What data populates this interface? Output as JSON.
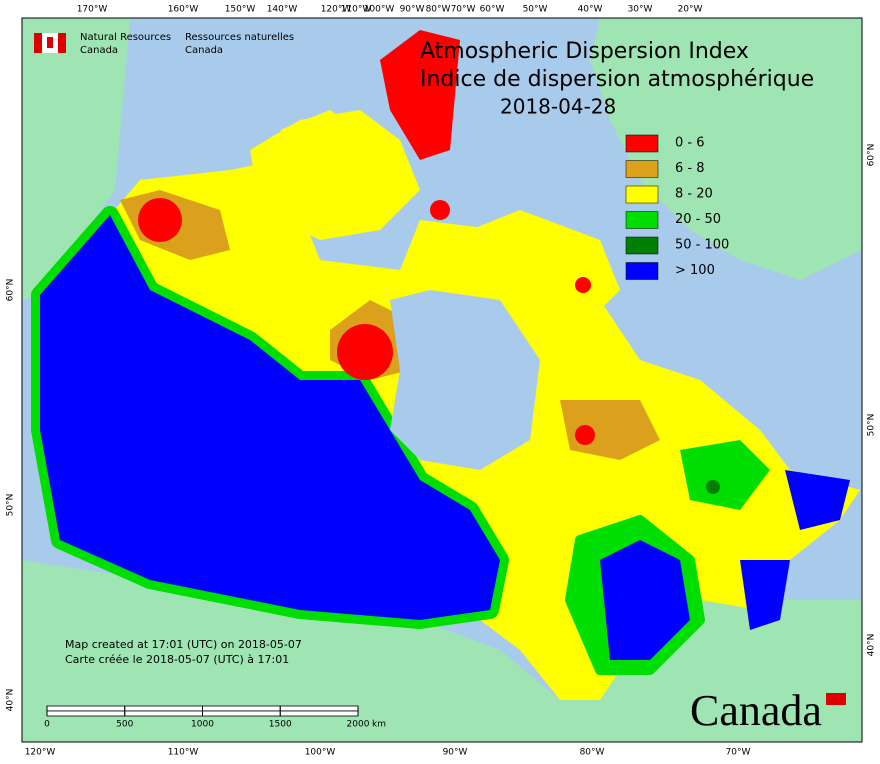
{
  "map": {
    "title": "Atmospheric Dispersion Index",
    "title_fr": "Indice de dispersion atmosphérique",
    "date": "2018-04-28",
    "logo": {
      "en": [
        "Natural Resources",
        "Canada"
      ],
      "fr": [
        "Ressources naturelles",
        "Canada"
      ]
    },
    "wordmark": "Canada",
    "legend": [
      {
        "label": "0 - 6",
        "color": "#ff0000"
      },
      {
        "label": "6 - 8",
        "color": "#dba11c"
      },
      {
        "label": "8 - 20",
        "color": "#ffff00"
      },
      {
        "label": "20 - 50",
        "color": "#00dd00"
      },
      {
        "label": "50 - 100",
        "color": "#007f00"
      },
      {
        "label": "> 100",
        "color": "#0000ff"
      }
    ],
    "top_labels": [
      "170°W",
      "160°W",
      "150°W",
      "140°W",
      "120°W",
      "110°W",
      "100°W",
      "90°W",
      "80°W",
      "70°W",
      "60°W",
      "50°W",
      "40°W",
      "30°W",
      "20°W"
    ],
    "bottom_labels": [
      "120°W",
      "110°W",
      "100°W",
      "90°W",
      "80°W",
      "70°W"
    ],
    "left_labels": [
      "60°N",
      "50°N",
      "40°N"
    ],
    "right_labels": [
      "60°N",
      "50°N",
      "40°N"
    ],
    "notes": [
      "Map created at 17:01 (UTC) on 2018-05-07",
      "Carte créée le 2018-05-07 (UTC) à 17:01"
    ],
    "scale": {
      "ticks": [
        0,
        500,
        1000,
        1500,
        2000
      ],
      "unit": "km"
    }
  }
}
